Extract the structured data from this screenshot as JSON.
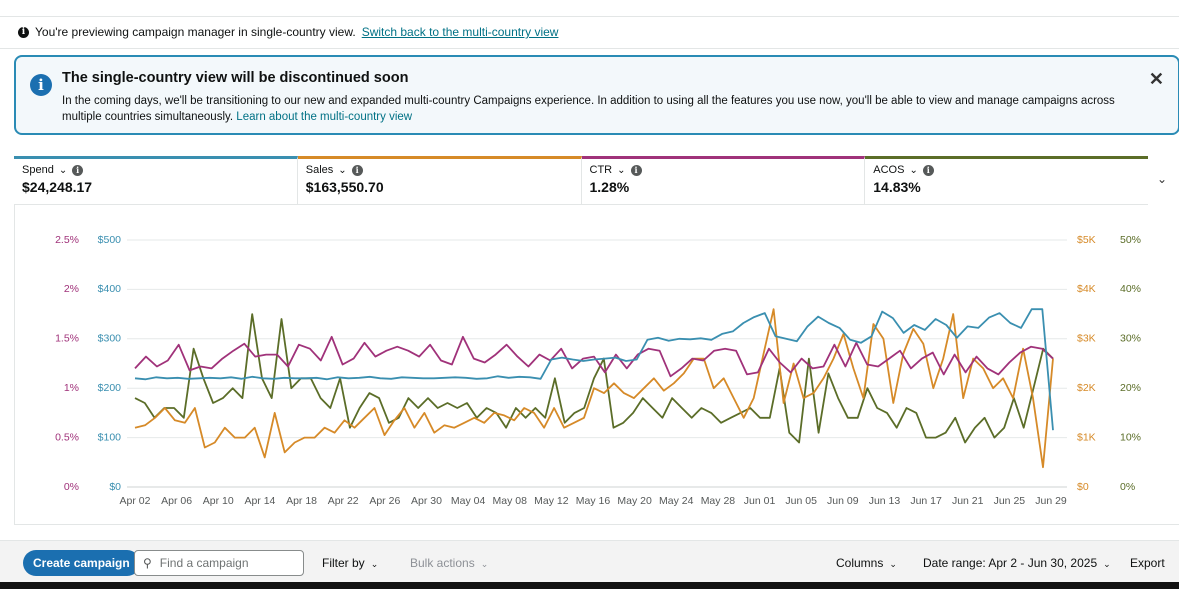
{
  "preview": {
    "text": "You're previewing campaign manager in single-country view.",
    "link": "Switch back to the multi-country view"
  },
  "alert": {
    "title": "The single-country view will be discontinued soon",
    "body": "In the coming days, we'll be transitioning to our new and expanded multi-country Campaigns experience. In addition to using all the features you use now, you'll be able to view and manage campaigns across multiple countries simultaneously.",
    "link": "Learn about the multi-country view"
  },
  "metrics": [
    {
      "label": "Spend",
      "value": "$24,248.17",
      "color": "#3a8fb0"
    },
    {
      "label": "Sales",
      "value": "$163,550.70",
      "color": "#d68a28"
    },
    {
      "label": "CTR",
      "value": "1.28%",
      "color": "#a0327a"
    },
    {
      "label": "ACOS",
      "value": "14.83%",
      "color": "#5b6d28"
    }
  ],
  "chart_data": {
    "type": "line",
    "x_ticks": [
      "Apr 02",
      "Apr 06",
      "Apr 10",
      "Apr 14",
      "Apr 18",
      "Apr 22",
      "Apr 26",
      "Apr 30",
      "May 04",
      "May 08",
      "May 12",
      "May 16",
      "May 20",
      "May 24",
      "May 28",
      "Jun 01",
      "Jun 05",
      "Jun 09",
      "Jun 13",
      "Jun 17",
      "Jun 21",
      "Jun 25",
      "Jun 29"
    ],
    "axes": {
      "left_ctr": [
        "2.5%",
        "2%",
        "1.5%",
        "1%",
        "0.5%",
        "0%"
      ],
      "left_spend": [
        "$500",
        "$400",
        "$300",
        "$200",
        "$100",
        "$0"
      ],
      "right_sales": [
        "$5K",
        "$4K",
        "$3K",
        "$2K",
        "$1K",
        "$0"
      ],
      "right_acos": [
        "50%",
        "40%",
        "30%",
        "20%",
        "10%",
        "0%"
      ]
    },
    "series": [
      {
        "name": "Spend",
        "color": "#3a8fb0",
        "unit_max": 500,
        "values": [
          220,
          218,
          222,
          220,
          221,
          219,
          220,
          221,
          220,
          222,
          219,
          223,
          220,
          219,
          221,
          220,
          220,
          221,
          218,
          222,
          220,
          221,
          223,
          220,
          219,
          222,
          221,
          220,
          220,
          221,
          222,
          221,
          219,
          220,
          224,
          221,
          223,
          222,
          219,
          258,
          262,
          258,
          255,
          258,
          260,
          262,
          255,
          258,
          298,
          302,
          296,
          300,
          299,
          301,
          298,
          310,
          315,
          332,
          344,
          352,
          305,
          300,
          295,
          325,
          345,
          332,
          322,
          298,
          292,
          305,
          355,
          342,
          312,
          328,
          318,
          340,
          328,
          302,
          325,
          322,
          343,
          352,
          332,
          322,
          360,
          360,
          115
        ]
      },
      {
        "name": "Sales",
        "color": "#d68a28",
        "unit_max": 5000,
        "values": [
          1200,
          1250,
          1400,
          1600,
          1350,
          1300,
          1600,
          800,
          900,
          1200,
          1000,
          1000,
          1200,
          600,
          1500,
          700,
          900,
          1000,
          1000,
          1200,
          1100,
          1350,
          1200,
          1400,
          1600,
          1050,
          1350,
          1600,
          1200,
          1500,
          1100,
          1250,
          1200,
          1300,
          1400,
          1300,
          1500,
          1450,
          1350,
          1600,
          1500,
          1200,
          1600,
          1200,
          1300,
          1400,
          2000,
          1900,
          2100,
          1900,
          1800,
          2000,
          2200,
          1950,
          2100,
          2300,
          2600,
          2600,
          2000,
          2200,
          1800,
          1400,
          1800,
          2700,
          3600,
          1700,
          2500,
          1800,
          1900,
          2200,
          2600,
          3100,
          2400,
          1800,
          3300,
          3000,
          1700,
          2700,
          3200,
          2900,
          2000,
          2600,
          3500,
          1800,
          2600,
          2400,
          2000,
          2200,
          1800,
          2800,
          1800,
          400,
          2600
        ]
      },
      {
        "name": "CTR",
        "color": "#a0327a",
        "unit_max": 2.5,
        "values": [
          1.2,
          1.32,
          1.22,
          1.28,
          1.44,
          1.18,
          1.22,
          1.2,
          1.3,
          1.38,
          1.45,
          1.32,
          1.34,
          1.34,
          1.22,
          1.44,
          1.4,
          1.28,
          1.52,
          1.24,
          1.3,
          1.46,
          1.32,
          1.38,
          1.42,
          1.38,
          1.32,
          1.44,
          1.28,
          1.24,
          1.52,
          1.3,
          1.26,
          1.34,
          1.44,
          1.32,
          1.22,
          1.34,
          1.28,
          1.4,
          1.2,
          1.3,
          1.32,
          1.16,
          1.34,
          1.2,
          1.34,
          1.4,
          1.38,
          1.12,
          1.2,
          1.3,
          1.28,
          1.38,
          1.4,
          1.38,
          1.14,
          1.16,
          1.4,
          1.26,
          1.16,
          1.3,
          1.2,
          1.22,
          1.44,
          1.22,
          1.46,
          1.24,
          1.22,
          1.3,
          1.38,
          1.2,
          1.3,
          1.36,
          1.14,
          1.34,
          1.16,
          1.32,
          1.2,
          1.14,
          1.26,
          1.36,
          1.42,
          1.4,
          1.3
        ]
      },
      {
        "name": "ACOS",
        "color": "#5b6d28",
        "unit_max": 50,
        "values": [
          18,
          17,
          14,
          16,
          16,
          14,
          28,
          22,
          17,
          18,
          20,
          18,
          35,
          22,
          18,
          34,
          20,
          22,
          22,
          18,
          16,
          22,
          12,
          16,
          19,
          18,
          13,
          14,
          18,
          16,
          18,
          16,
          17,
          16,
          17,
          14,
          16,
          15,
          12,
          16,
          14,
          16,
          14,
          22,
          13,
          15,
          16,
          22,
          26,
          12,
          13,
          15,
          18,
          16,
          14,
          18,
          16,
          14,
          16,
          15,
          13,
          14,
          15,
          16,
          14,
          14,
          24,
          11,
          9,
          26,
          11,
          23,
          18,
          14,
          14,
          20,
          16,
          15,
          12,
          16,
          15,
          10,
          10,
          11,
          14,
          9,
          12,
          14,
          10,
          12,
          18,
          12,
          20,
          28,
          26
        ]
      }
    ]
  },
  "toolbar": {
    "create": "Create campaign",
    "search_placeholder": "Find a campaign",
    "filter": "Filter by",
    "bulk": "Bulk actions",
    "columns": "Columns",
    "date_range": "Date range: Apr 2 - Jun 30, 2025",
    "export": "Export"
  }
}
